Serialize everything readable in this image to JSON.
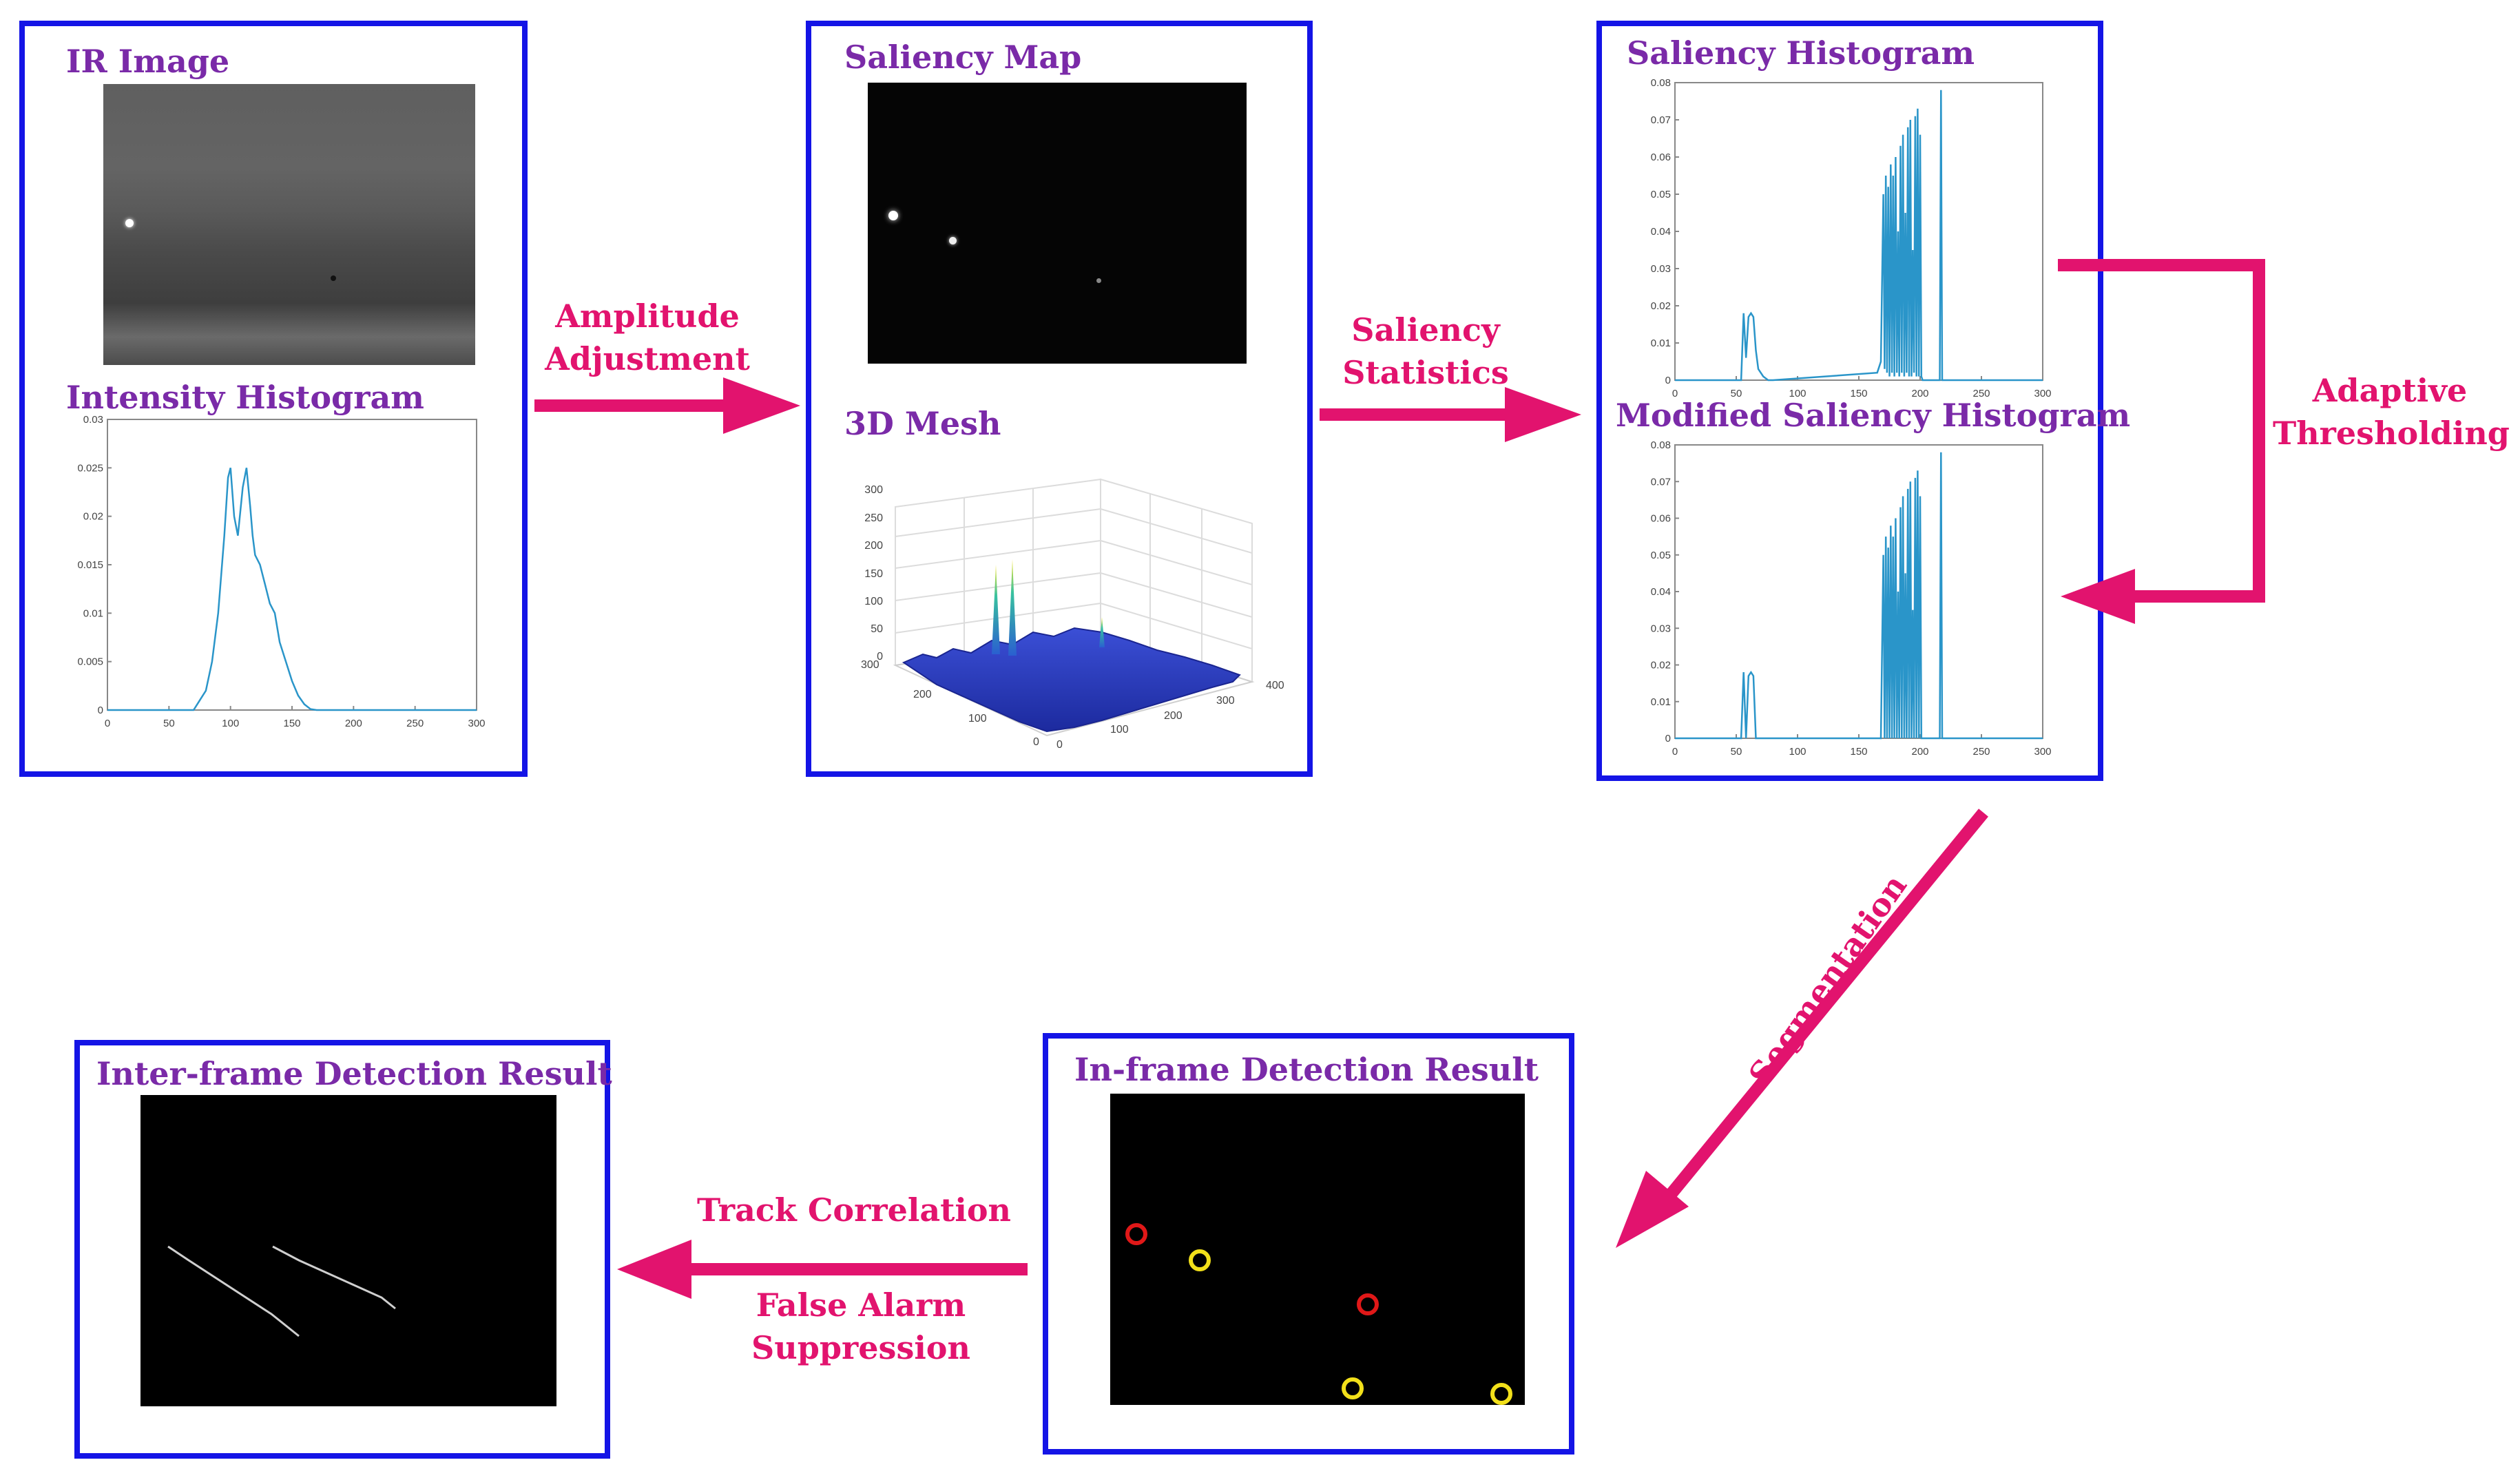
{
  "colors": {
    "panel_border": "#1414e6",
    "title": "#7a2aa8",
    "arrow": "#e2136e",
    "plot_line": "#2a95c9"
  },
  "panels": {
    "ir": {
      "title": "IR Image",
      "sub_title": "Intensity Histogram"
    },
    "saliency": {
      "title": "Saliency Map",
      "sub_title": "3D Mesh"
    },
    "histograms": {
      "title": "Saliency Histogram",
      "sub_title": "Modified Saliency Histogram"
    },
    "inframe": {
      "title": "In-frame Detection Result"
    },
    "interframe": {
      "title": "Inter-frame Detection Result"
    }
  },
  "flow_labels": {
    "amplitude": [
      "Amplitude",
      "Adjustment"
    ],
    "statistics": [
      "Saliency",
      "Statistics"
    ],
    "adaptive": [
      "Adaptive",
      "Thresholding"
    ],
    "segmentation": "Segmentation",
    "track": "Track Correlation",
    "false_alarm": [
      "False Alarm",
      "Suppression"
    ]
  },
  "chart_data": [
    {
      "type": "line",
      "name": "intensity-histogram",
      "x_ticks": [
        "0",
        "50",
        "100",
        "150",
        "200",
        "250",
        "300"
      ],
      "y_ticks": [
        "0",
        "0.005",
        "0.01",
        "0.015",
        "0.02",
        "0.025",
        "0.03"
      ],
      "xlim": [
        0,
        300
      ],
      "ylim": [
        0,
        0.03
      ],
      "x": [
        0,
        70,
        75,
        80,
        85,
        90,
        95,
        98,
        100,
        103,
        106,
        110,
        113,
        116,
        118,
        120,
        124,
        128,
        132,
        136,
        140,
        145,
        150,
        155,
        160,
        165,
        170,
        300
      ],
      "y": [
        0,
        0,
        0.001,
        0.002,
        0.005,
        0.01,
        0.018,
        0.024,
        0.025,
        0.02,
        0.018,
        0.023,
        0.025,
        0.021,
        0.018,
        0.016,
        0.015,
        0.013,
        0.011,
        0.01,
        0.007,
        0.005,
        0.003,
        0.0015,
        0.0006,
        0.0001,
        0,
        0
      ]
    },
    {
      "type": "line",
      "name": "saliency-histogram",
      "x_ticks": [
        "0",
        "50",
        "100",
        "150",
        "200",
        "250",
        "300"
      ],
      "y_ticks": [
        "0",
        "0.01",
        "0.02",
        "0.03",
        "0.04",
        "0.05",
        "0.06",
        "0.07",
        "0.08"
      ],
      "xlim": [
        0,
        300
      ],
      "ylim": [
        0,
        0.08
      ],
      "x": [
        0,
        54,
        56,
        58,
        60,
        62,
        64,
        66,
        68,
        72,
        76,
        80,
        165,
        168,
        170,
        171,
        172,
        173,
        174,
        175,
        176,
        177,
        178,
        179,
        180,
        181,
        182,
        183,
        184,
        185,
        186,
        187,
        188,
        189,
        190,
        191,
        192,
        193,
        194,
        195,
        196,
        197,
        198,
        199,
        200,
        201,
        202,
        216,
        217,
        218,
        300
      ],
      "y": [
        0,
        0,
        0.018,
        0.006,
        0.017,
        0.018,
        0.017,
        0.008,
        0.003,
        0.001,
        0,
        0,
        0.002,
        0.005,
        0.05,
        0.003,
        0.055,
        0.002,
        0.052,
        0.001,
        0.058,
        0.002,
        0.055,
        0.001,
        0.06,
        0.002,
        0.04,
        0.001,
        0.063,
        0.002,
        0.066,
        0.001,
        0.045,
        0.002,
        0.068,
        0.001,
        0.07,
        0.001,
        0.035,
        0.002,
        0.071,
        0.001,
        0.073,
        0.001,
        0.066,
        0.001,
        0,
        0,
        0.078,
        0,
        0
      ]
    },
    {
      "type": "line",
      "name": "modified-saliency-histogram",
      "x_ticks": [
        "0",
        "50",
        "100",
        "150",
        "200",
        "250",
        "300"
      ],
      "y_ticks": [
        "0",
        "0.01",
        "0.02",
        "0.03",
        "0.04",
        "0.05",
        "0.06",
        "0.07",
        "0.08"
      ],
      "xlim": [
        0,
        300
      ],
      "ylim": [
        0,
        0.08
      ],
      "x": [
        0,
        54,
        56,
        58,
        60,
        62,
        64,
        66,
        68,
        72,
        76,
        80,
        165,
        168,
        170,
        171,
        172,
        173,
        174,
        175,
        176,
        177,
        178,
        179,
        180,
        181,
        182,
        183,
        184,
        185,
        186,
        187,
        188,
        189,
        190,
        191,
        192,
        193,
        194,
        195,
        196,
        197,
        198,
        199,
        200,
        201,
        202,
        216,
        217,
        218,
        300
      ],
      "y": [
        0,
        0,
        0.018,
        0,
        0.017,
        0.018,
        0.017,
        0,
        0,
        0,
        0,
        0,
        0,
        0,
        0.05,
        0,
        0.055,
        0,
        0.052,
        0,
        0.058,
        0,
        0.055,
        0,
        0.06,
        0,
        0.04,
        0,
        0.063,
        0,
        0.066,
        0,
        0.045,
        0,
        0.068,
        0,
        0.07,
        0,
        0.035,
        0,
        0.071,
        0,
        0.073,
        0,
        0.066,
        0,
        0,
        0,
        0.078,
        0,
        0
      ]
    }
  ],
  "mesh_axes": {
    "z_ticks": [
      "300",
      "250",
      "200",
      "150",
      "100",
      "50",
      "0"
    ],
    "y_ticks": [
      "300",
      "200",
      "100",
      "0"
    ],
    "x_ticks": [
      "0",
      "100",
      "200",
      "300",
      "400"
    ]
  }
}
